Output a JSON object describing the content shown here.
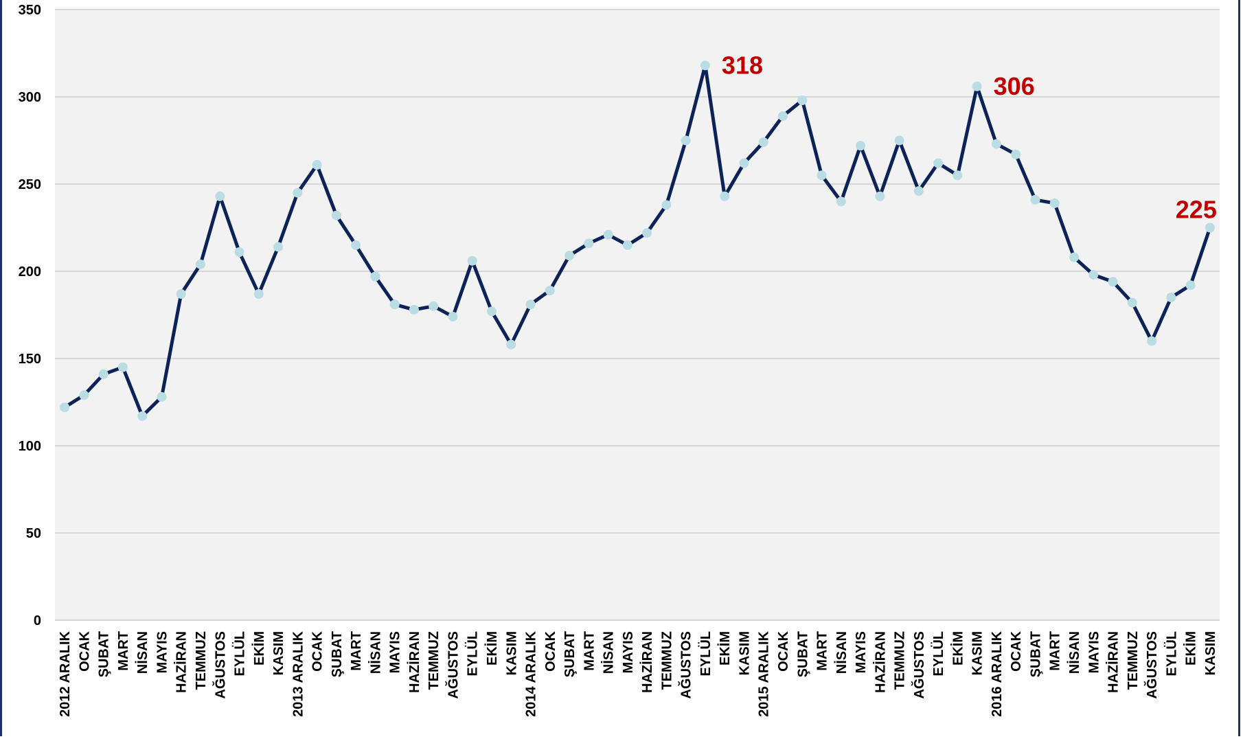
{
  "colors": {
    "line": "#0d2358",
    "marker": "#b9dde3",
    "annotation": "#c00000",
    "plot_bg": "#f2f2f2",
    "grid": "#d6d6d6"
  },
  "chart_data": {
    "type": "line",
    "title": "",
    "xlabel": "",
    "ylabel": "",
    "ylim": [
      0,
      350
    ],
    "yticks": [
      0,
      50,
      100,
      150,
      200,
      250,
      300,
      350
    ],
    "grid": true,
    "categories": [
      "2012 ARALIK",
      "OCAK",
      "ŞUBAT",
      "MART",
      "NİSAN",
      "MAYIS",
      "HAZİRAN",
      "TEMMUZ",
      "AĞUSTOS",
      "EYLÜL",
      "EKİM",
      "KASIM",
      "2013 ARALIK",
      "OCAK",
      "ŞUBAT",
      "MART",
      "NİSAN",
      "MAYIS",
      "HAZİRAN",
      "TEMMUZ",
      "AĞUSTOS",
      "EYLÜL",
      "EKİM",
      "KASIM",
      "2014 ARALIK",
      "OCAK",
      "ŞUBAT",
      "MART",
      "NİSAN",
      "MAYIS",
      "HAZİRAN",
      "TEMMUZ",
      "AĞUSTOS",
      "EYLÜL",
      "EKİM",
      "KASIM",
      "2015 ARALIK",
      "OCAK",
      "ŞUBAT",
      "MART",
      "NİSAN",
      "MAYIS",
      "HAZİRAN",
      "TEMMUZ",
      "AĞUSTOS",
      "EYLÜL",
      "EKİM",
      "KASIM",
      "2016 ARALIK",
      "OCAK",
      "ŞUBAT",
      "MART",
      "NİSAN",
      "MAYIS",
      "HAZİRAN",
      "TEMMUZ",
      "AĞUSTOS",
      "EYLÜL",
      "EKİM",
      "KASIM"
    ],
    "series": [
      {
        "values": [
          122,
          129,
          141,
          145,
          117,
          128,
          187,
          204,
          243,
          211,
          187,
          214,
          245,
          261,
          232,
          215,
          197,
          181,
          178,
          180,
          174,
          206,
          177,
          158,
          181,
          189,
          209,
          216,
          221,
          215,
          222,
          238,
          275,
          318,
          243,
          262,
          274,
          289,
          298,
          255,
          240,
          272,
          243,
          275,
          246,
          262,
          255,
          306,
          273,
          267,
          241,
          239,
          208,
          198,
          194,
          182,
          160,
          185,
          192,
          225
        ]
      }
    ],
    "annotations": [
      {
        "index": 33,
        "text": "318"
      },
      {
        "index": 47,
        "text": "306"
      },
      {
        "index": 59,
        "text": "225"
      }
    ]
  }
}
